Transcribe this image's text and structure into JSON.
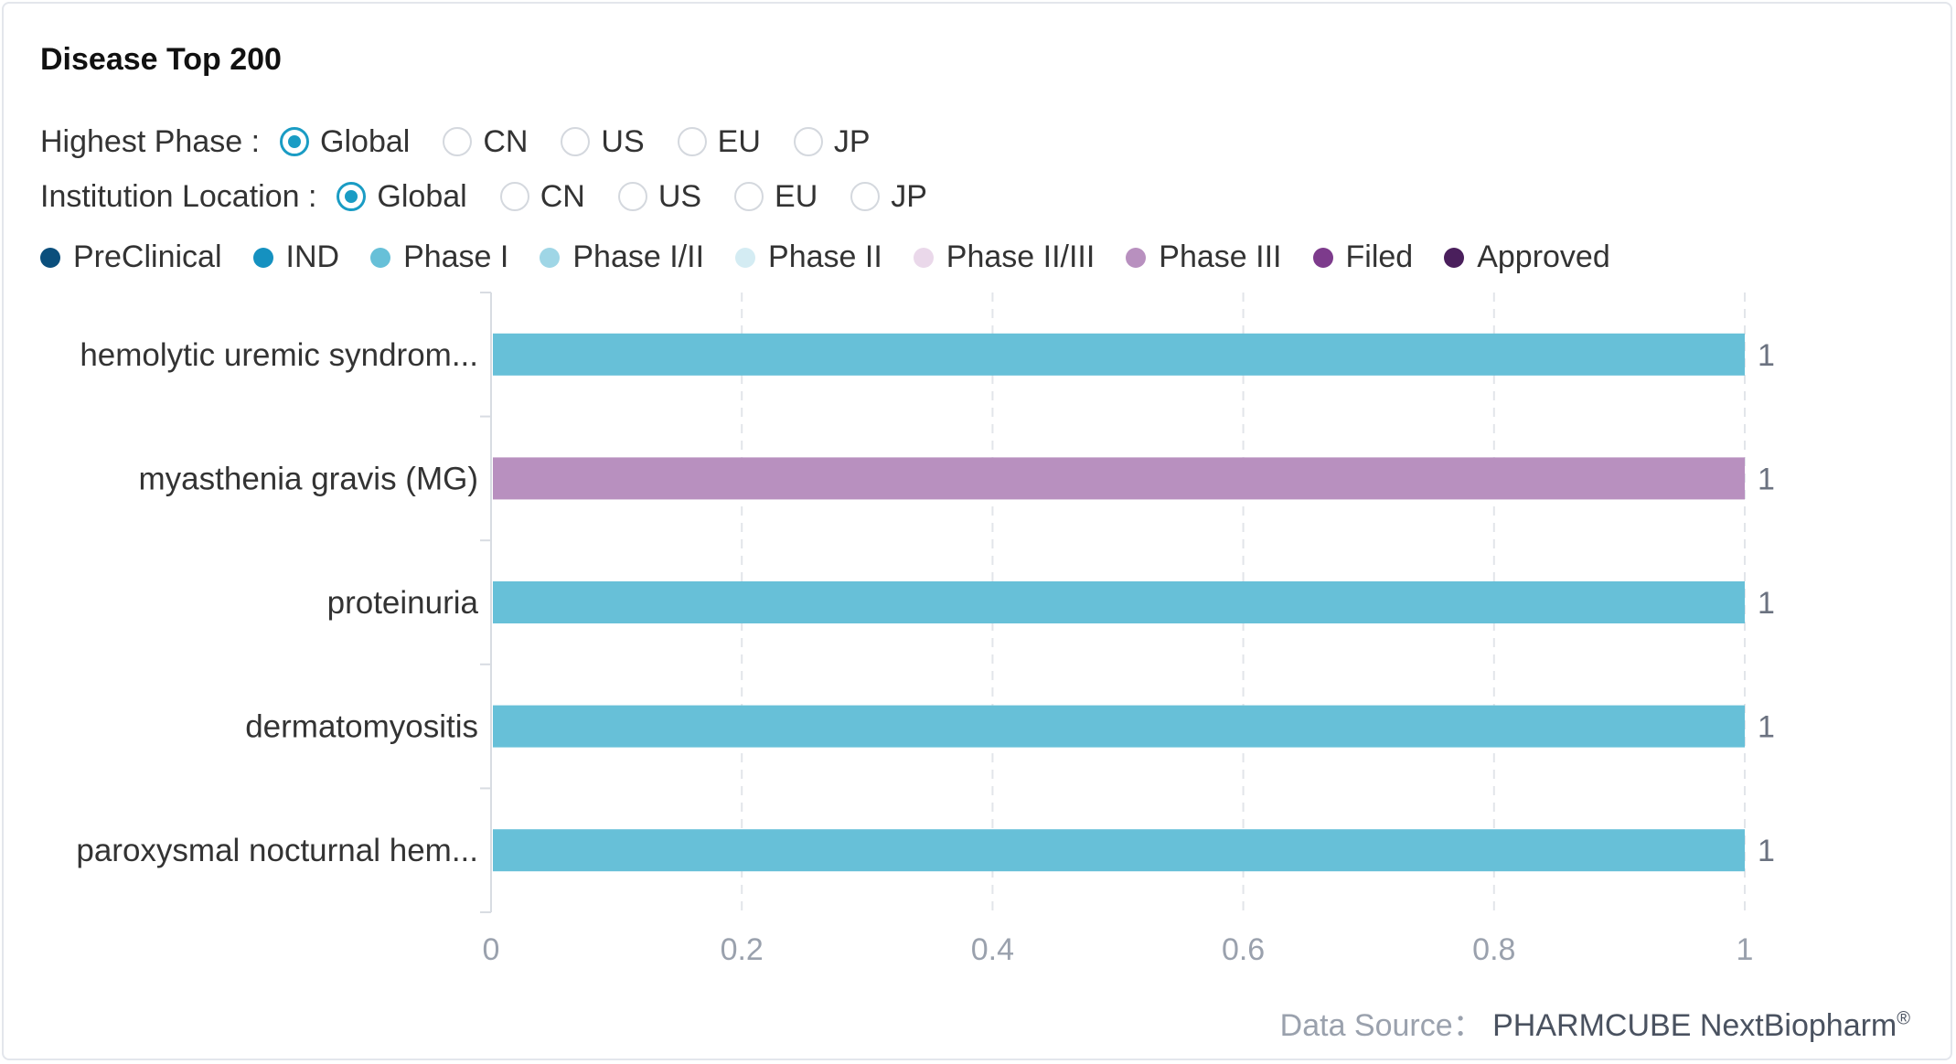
{
  "title": "Disease Top 200",
  "filters": {
    "highest_phase": {
      "label": "Highest Phase :",
      "options": [
        "Global",
        "CN",
        "US",
        "EU",
        "JP"
      ],
      "selected": "Global"
    },
    "institution_location": {
      "label": "Institution Location :",
      "options": [
        "Global",
        "CN",
        "US",
        "EU",
        "JP"
      ],
      "selected": "Global"
    }
  },
  "legend": [
    {
      "name": "PreClinical",
      "color": "#0b4f7c"
    },
    {
      "name": "IND",
      "color": "#1591c0"
    },
    {
      "name": "Phase I",
      "color": "#67c0d8"
    },
    {
      "name": "Phase I/II",
      "color": "#9fd6e6"
    },
    {
      "name": "Phase II",
      "color": "#d4ecf3"
    },
    {
      "name": "Phase II/III",
      "color": "#ead8ea"
    },
    {
      "name": "Phase III",
      "color": "#b890bf"
    },
    {
      "name": "Filed",
      "color": "#7d3b8c"
    },
    {
      "name": "Approved",
      "color": "#4a1f5c"
    }
  ],
  "chart_data": {
    "type": "bar",
    "orientation": "horizontal",
    "categories": [
      "hemolytic uremic syndrom...",
      "myasthenia gravis (MG)",
      "proteinuria",
      "dermatomyositis",
      "paroxysmal nocturnal hem..."
    ],
    "values": [
      1,
      1,
      1,
      1,
      1
    ],
    "phases": [
      "Phase I",
      "Phase III",
      "Phase I",
      "Phase I",
      "Phase I"
    ],
    "data_labels": [
      "1",
      "1",
      "1",
      "1",
      "1"
    ],
    "xlim": [
      0,
      1
    ],
    "xticks": [
      0,
      0.2,
      0.4,
      0.6,
      0.8,
      1
    ],
    "grid": "vertical-dashed"
  },
  "footer": {
    "prefix": "Data Source：",
    "brand": "PHARMCUBE NextBiopharm",
    "mark": "®"
  }
}
